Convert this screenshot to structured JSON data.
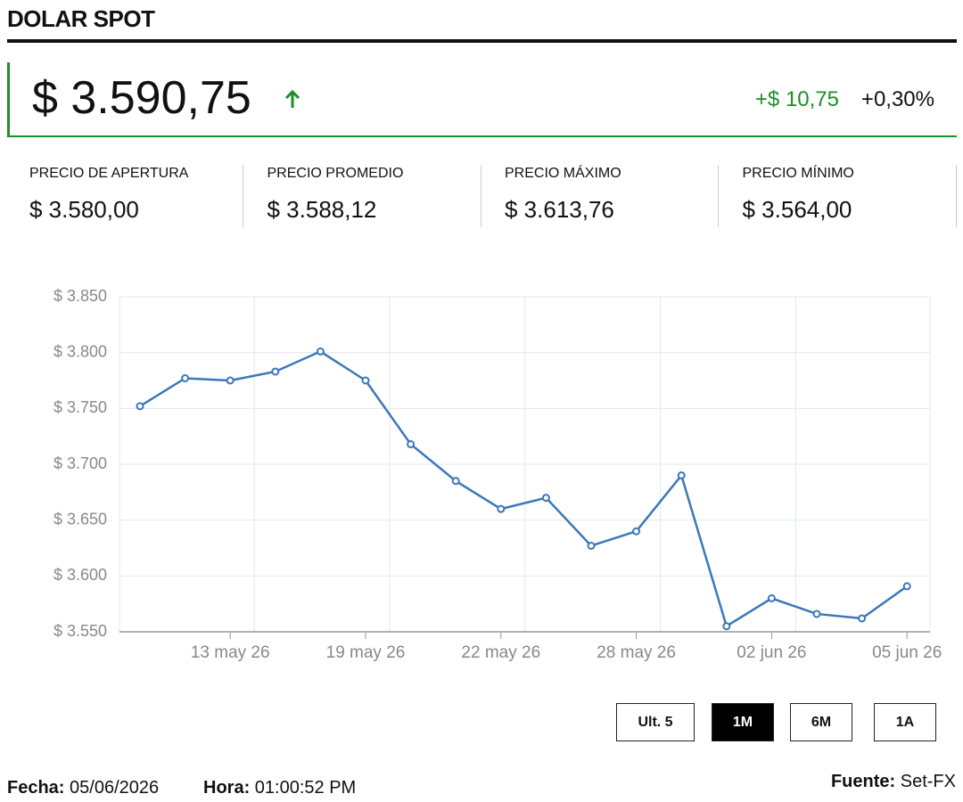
{
  "header": {
    "title": "DOLAR SPOT"
  },
  "quote": {
    "price": "$ 3.590,75",
    "change": "+$ 10,75",
    "change_pct": "+0,30%"
  },
  "stats": [
    {
      "label": "PRECIO DE APERTURA",
      "value": "$ 3.580,00"
    },
    {
      "label": "PRECIO PROMEDIO",
      "value": "$ 3.588,12"
    },
    {
      "label": "PRECIO MÁXIMO",
      "value": "$ 3.613,76"
    },
    {
      "label": "PRECIO MÍNIMO",
      "value": "$ 3.564,00"
    }
  ],
  "chart_data": {
    "type": "line",
    "categories": [
      null,
      null,
      "13 may 26",
      null,
      null,
      "19 may 26",
      null,
      null,
      "22 may 26",
      null,
      null,
      "28 may 26",
      null,
      null,
      "02 jun 26",
      null,
      null,
      "05 jun 26"
    ],
    "series": [
      {
        "name": "Dolar spot",
        "color": "#3a78b8",
        "values": [
          3752,
          3777,
          3775,
          3783,
          3801,
          3775,
          3718,
          3685,
          3660,
          3670,
          3627,
          3640,
          3690,
          3555,
          3580,
          3566,
          3562,
          3590.75
        ]
      }
    ],
    "ylim": [
      3550,
      3850
    ],
    "yticks": [
      {
        "value": 3550,
        "label": "$ 3.550"
      },
      {
        "value": 3600,
        "label": "$ 3.600"
      },
      {
        "value": 3650,
        "label": "$ 3.650"
      },
      {
        "value": 3700,
        "label": "$ 3.700"
      },
      {
        "value": 3750,
        "label": "$ 3.750"
      },
      {
        "value": 3800,
        "label": "$ 3.800"
      },
      {
        "value": 3850,
        "label": "$ 3.850"
      }
    ],
    "grid": true
  },
  "ranges": {
    "options": [
      "Ult. 5",
      "1M",
      "6M",
      "1A"
    ],
    "active": 1
  },
  "footer": {
    "date_label": "Fecha:",
    "date": "05/06/2026",
    "time_label": "Hora:",
    "time": "01:00:52 PM",
    "source_label": "Fuente:",
    "source": "Set-FX"
  }
}
